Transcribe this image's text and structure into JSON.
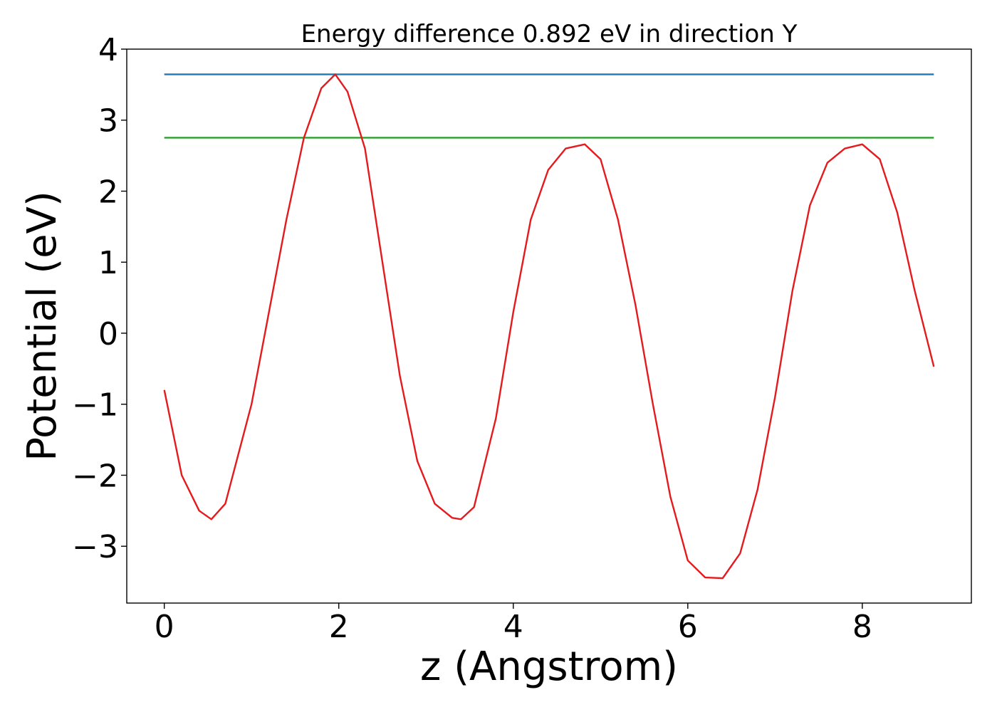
{
  "chart_data": {
    "type": "line",
    "title": "Energy difference 0.892 eV in direction Y",
    "xlabel": "z (Angstrom)",
    "ylabel": "Potential (eV)",
    "xlim": [
      -0.43,
      9.25
    ],
    "ylim": [
      -3.8,
      4.0
    ],
    "xticks": [
      0,
      2,
      4,
      6,
      8
    ],
    "yticks": [
      -3,
      -2,
      -1,
      0,
      1,
      2,
      3,
      4
    ],
    "xtick_labels": [
      "0",
      "2",
      "4",
      "6",
      "8"
    ],
    "ytick_labels": [
      "−3",
      "−2",
      "−1",
      "0",
      "1",
      "2",
      "3",
      "4"
    ],
    "grid": false,
    "series": [
      {
        "color": "#1f77b4",
        "x": [
          0,
          8.82
        ],
        "y": [
          3.645,
          3.645
        ]
      },
      {
        "color": "#2ca02c",
        "x": [
          0,
          8.82
        ],
        "y": [
          2.753,
          2.753
        ]
      },
      {
        "color": "#e41a1c",
        "x": [
          0,
          0.2,
          0.4,
          0.54,
          0.7,
          1.0,
          1.2,
          1.4,
          1.6,
          1.8,
          1.96,
          2.1,
          2.3,
          2.5,
          2.7,
          2.9,
          3.1,
          3.3,
          3.4,
          3.55,
          3.8,
          4.0,
          4.2,
          4.4,
          4.6,
          4.82,
          5.0,
          5.2,
          5.4,
          5.6,
          5.8,
          6.0,
          6.2,
          6.4,
          6.6,
          6.8,
          7.0,
          7.2,
          7.4,
          7.6,
          7.8,
          8.0,
          8.2,
          8.4,
          8.6,
          8.82
        ],
        "y": [
          -0.8,
          -2.0,
          -2.5,
          -2.62,
          -2.4,
          -1.0,
          0.3,
          1.6,
          2.75,
          3.45,
          3.645,
          3.4,
          2.6,
          1.0,
          -0.6,
          -1.8,
          -2.4,
          -2.6,
          -2.62,
          -2.45,
          -1.2,
          0.3,
          1.6,
          2.3,
          2.6,
          2.66,
          2.45,
          1.6,
          0.4,
          -1.0,
          -2.3,
          -3.2,
          -3.44,
          -3.45,
          -3.1,
          -2.2,
          -0.9,
          0.6,
          1.8,
          2.4,
          2.6,
          2.66,
          2.45,
          1.7,
          0.6,
          -0.47
        ]
      }
    ]
  }
}
